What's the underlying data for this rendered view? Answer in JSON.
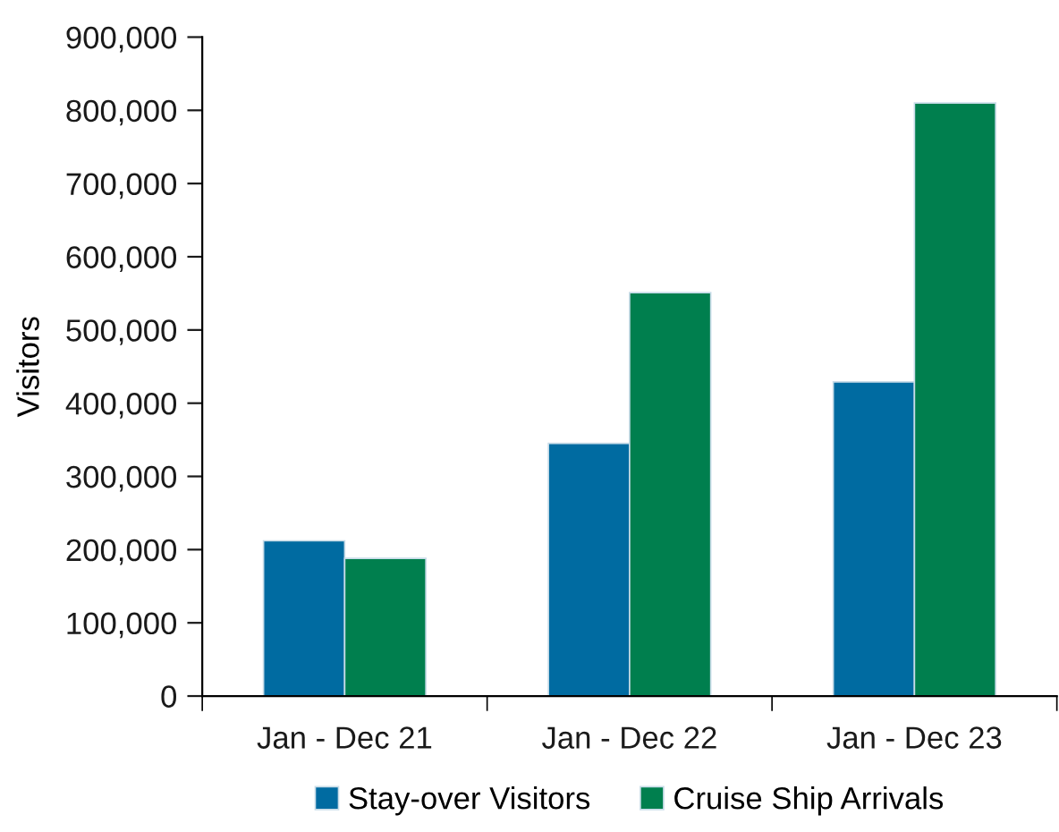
{
  "chart_data": {
    "type": "bar",
    "ylabel": "Visitors",
    "categories": [
      "Jan - Dec 21",
      "Jan - Dec 22",
      "Jan - Dec 23"
    ],
    "series": [
      {
        "name": "Stay-over Visitors",
        "color": "#006ba1",
        "values": [
          212000,
          345000,
          429000
        ]
      },
      {
        "name": "Cruise Ship Arrivals",
        "color": "#007f4e",
        "values": [
          188000,
          551000,
          810000
        ]
      }
    ],
    "ylim": [
      0,
      900000
    ],
    "yticks": [
      {
        "value": 0,
        "label": "0"
      },
      {
        "value": 100000,
        "label": "100,000"
      },
      {
        "value": 200000,
        "label": "200,000"
      },
      {
        "value": 300000,
        "label": "300,000"
      },
      {
        "value": 400000,
        "label": "400,000"
      },
      {
        "value": 500000,
        "label": "500,000"
      },
      {
        "value": 600000,
        "label": "600,000"
      },
      {
        "value": 700000,
        "label": "700,000"
      },
      {
        "value": 800000,
        "label": "800,000"
      },
      {
        "value": 900000,
        "label": "900,000"
      }
    ],
    "grid": false,
    "legend": "bottom"
  }
}
